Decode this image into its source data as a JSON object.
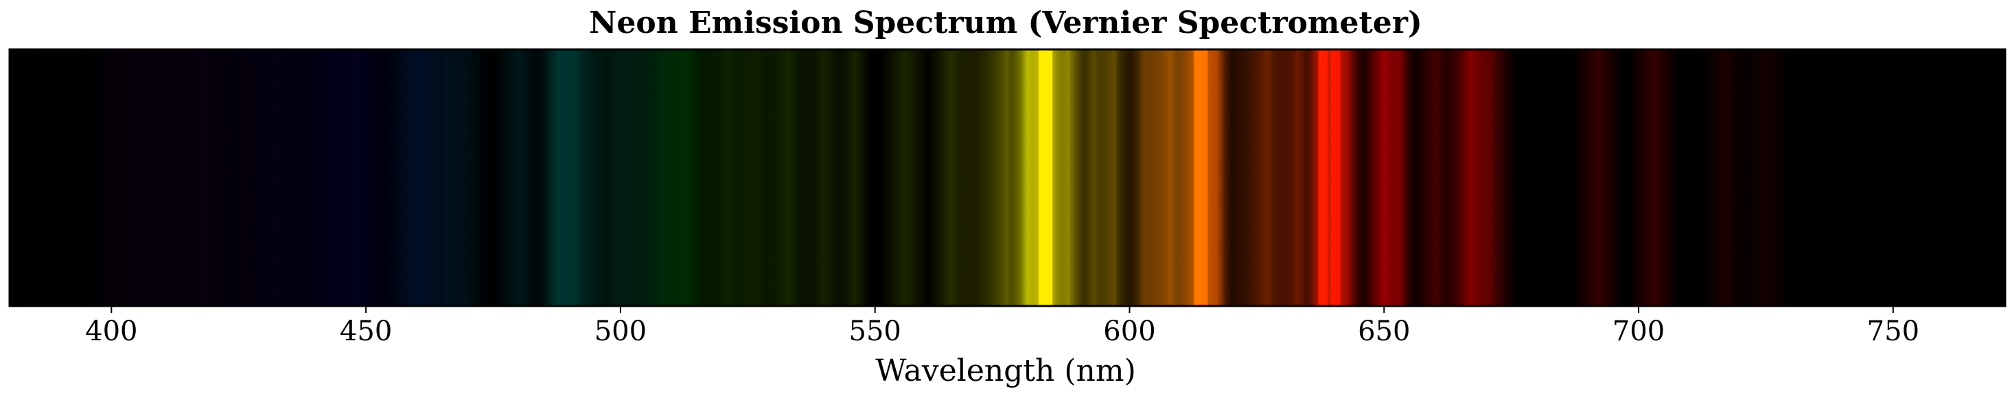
{
  "chart_data": {
    "type": "heatmap",
    "title": "Neon Emission Spectrum (Vernier Spectrometer)",
    "xlabel": "Wavelength (nm)",
    "ylabel": "",
    "xlim": [
      380,
      772
    ],
    "xticks": [
      400,
      450,
      500,
      550,
      600,
      650,
      700,
      750
    ],
    "grid": false,
    "background_color": "#000000",
    "frame_color": "#000000",
    "bands": [
      {
        "wavelength": 388,
        "width": 6,
        "intensity": 0.1,
        "color": "#1a0022"
      },
      {
        "wavelength": 403,
        "width": 5,
        "intensity": 0.15,
        "color": "#2a0040"
      },
      {
        "wavelength": 411,
        "width": 5,
        "intensity": 0.14,
        "color": "#250045"
      },
      {
        "wavelength": 418,
        "width": 4,
        "intensity": 0.16,
        "color": "#220048"
      },
      {
        "wavelength": 426,
        "width": 6,
        "intensity": 0.18,
        "color": "#1e0050"
      },
      {
        "wavelength": 433,
        "width": 4,
        "intensity": 0.15,
        "color": "#150058"
      },
      {
        "wavelength": 441,
        "width": 6,
        "intensity": 0.2,
        "color": "#0a005c"
      },
      {
        "wavelength": 449,
        "width": 6,
        "intensity": 0.25,
        "color": "#050060"
      },
      {
        "wavelength": 460,
        "width": 4,
        "intensity": 0.35,
        "color": "#002a70"
      },
      {
        "wavelength": 466,
        "width": 3,
        "intensity": 0.25,
        "color": "#003860"
      },
      {
        "wavelength": 470,
        "width": 3,
        "intensity": 0.2,
        "color": "#004058"
      },
      {
        "wavelength": 480,
        "width": 3,
        "intensity": 0.28,
        "color": "#005058"
      },
      {
        "wavelength": 488,
        "width": 3,
        "intensity": 0.38,
        "color": "#006060"
      },
      {
        "wavelength": 491,
        "width": 4,
        "intensity": 0.42,
        "color": "#006858"
      },
      {
        "wavelength": 500,
        "width": 5,
        "intensity": 0.35,
        "color": "#005038"
      },
      {
        "wavelength": 508,
        "width": 5,
        "intensity": 0.42,
        "color": "#005018"
      },
      {
        "wavelength": 513,
        "width": 4,
        "intensity": 0.45,
        "color": "#005000"
      },
      {
        "wavelength": 521,
        "width": 4,
        "intensity": 0.35,
        "color": "#206000"
      },
      {
        "wavelength": 527,
        "width": 3,
        "intensity": 0.3,
        "color": "#306000"
      },
      {
        "wavelength": 533,
        "width": 3,
        "intensity": 0.35,
        "color": "#3a6800"
      },
      {
        "wavelength": 540,
        "width": 3,
        "intensity": 0.3,
        "color": "#406800"
      },
      {
        "wavelength": 546,
        "width": 2,
        "intensity": 0.3,
        "color": "#487000"
      },
      {
        "wavelength": 556,
        "width": 3,
        "intensity": 0.3,
        "color": "#587800"
      },
      {
        "wavelength": 565,
        "width": 3,
        "intensity": 0.33,
        "color": "#708000"
      },
      {
        "wavelength": 571,
        "width": 3,
        "intensity": 0.3,
        "color": "#787800"
      },
      {
        "wavelength": 576,
        "width": 3,
        "intensity": 0.55,
        "color": "#a0a000"
      },
      {
        "wavelength": 580,
        "width": 2,
        "intensity": 0.75,
        "color": "#d0d000"
      },
      {
        "wavelength": 583.5,
        "width": 3,
        "intensity": 1.0,
        "color": "#ffee00"
      },
      {
        "wavelength": 588,
        "width": 2,
        "intensity": 0.65,
        "color": "#d0c000"
      },
      {
        "wavelength": 593,
        "width": 3,
        "intensity": 0.45,
        "color": "#c0a000"
      },
      {
        "wavelength": 597,
        "width": 2,
        "intensity": 0.45,
        "color": "#c09000"
      },
      {
        "wavelength": 603,
        "width": 3,
        "intensity": 0.45,
        "color": "#c07000"
      },
      {
        "wavelength": 608,
        "width": 4,
        "intensity": 0.65,
        "color": "#e07800"
      },
      {
        "wavelength": 614,
        "width": 3,
        "intensity": 0.9,
        "color": "#ff7800"
      },
      {
        "wavelength": 617,
        "width": 2,
        "intensity": 0.55,
        "color": "#ff6000"
      },
      {
        "wavelength": 622,
        "width": 3,
        "intensity": 0.3,
        "color": "#a03000"
      },
      {
        "wavelength": 627,
        "width": 3,
        "intensity": 0.55,
        "color": "#c03800"
      },
      {
        "wavelength": 633,
        "width": 3,
        "intensity": 0.55,
        "color": "#c02800"
      },
      {
        "wavelength": 638,
        "width": 2,
        "intensity": 0.9,
        "color": "#ff2000"
      },
      {
        "wavelength": 640.5,
        "width": 2,
        "intensity": 1.0,
        "color": "#ff1800"
      },
      {
        "wavelength": 643,
        "width": 2,
        "intensity": 0.55,
        "color": "#e01000"
      },
      {
        "wavelength": 650,
        "width": 3,
        "intensity": 0.65,
        "color": "#e00000"
      },
      {
        "wavelength": 653,
        "width": 2,
        "intensity": 0.5,
        "color": "#c00000"
      },
      {
        "wavelength": 660,
        "width": 3,
        "intensity": 0.4,
        "color": "#a00000"
      },
      {
        "wavelength": 667,
        "width": 3,
        "intensity": 0.6,
        "color": "#d00000"
      },
      {
        "wavelength": 671,
        "width": 3,
        "intensity": 0.45,
        "color": "#b00000"
      },
      {
        "wavelength": 692,
        "width": 3,
        "intensity": 0.35,
        "color": "#900000"
      },
      {
        "wavelength": 703,
        "width": 3,
        "intensity": 0.35,
        "color": "#900000"
      },
      {
        "wavelength": 717,
        "width": 3,
        "intensity": 0.2,
        "color": "#800000"
      },
      {
        "wavelength": 725,
        "width": 3,
        "intensity": 0.18,
        "color": "#700000"
      }
    ]
  }
}
